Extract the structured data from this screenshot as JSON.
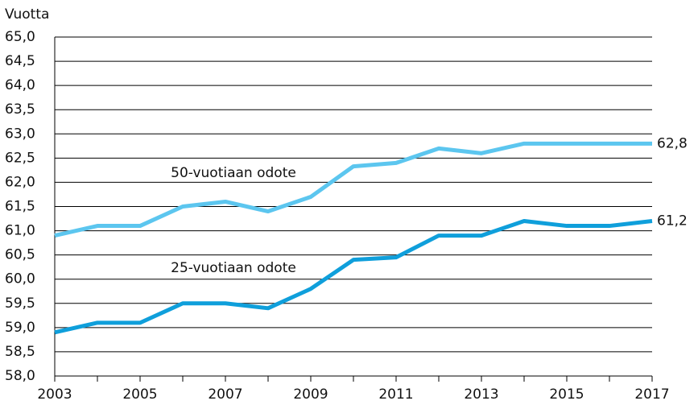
{
  "chart_data": {
    "type": "line",
    "y_label": "Vuotta",
    "x": [
      2003,
      2004,
      2005,
      2006,
      2007,
      2008,
      2009,
      2010,
      2011,
      2012,
      2013,
      2014,
      2015,
      2016,
      2017
    ],
    "series": [
      {
        "name": "50-vuotiaan odote",
        "color": "#5cc6ef",
        "values": [
          60.9,
          61.1,
          61.1,
          61.5,
          61.6,
          61.4,
          61.7,
          62.33,
          62.4,
          62.7,
          62.6,
          62.8,
          62.8,
          62.8,
          62.8
        ],
        "value_labels": [
          null,
          null,
          null,
          null,
          null,
          null,
          null,
          null,
          null,
          null,
          null,
          null,
          null,
          null,
          "62,8"
        ]
      },
      {
        "name": "25-vuotiaan odote",
        "color": "#0f9fdb",
        "values": [
          58.9,
          59.1,
          59.1,
          59.5,
          59.5,
          59.4,
          59.8,
          60.4,
          60.45,
          60.9,
          60.9,
          61.2,
          61.1,
          61.1,
          61.2
        ],
        "value_labels": [
          null,
          null,
          null,
          null,
          null,
          null,
          null,
          null,
          null,
          null,
          null,
          null,
          null,
          null,
          "61,2"
        ]
      }
    ],
    "xlim": [
      2003,
      2017
    ],
    "xticks": [
      2003,
      2005,
      2007,
      2009,
      2011,
      2013,
      2015,
      2017
    ],
    "ylim": [
      58,
      65
    ],
    "yticks": [
      {
        "value": 58,
        "label": "58,0"
      },
      {
        "value": 58.5,
        "label": "58,5"
      },
      {
        "value": 59,
        "label": "59,0"
      },
      {
        "value": 59.5,
        "label": "59,5"
      },
      {
        "value": 60,
        "label": "60,0"
      },
      {
        "value": 60.5,
        "label": "60,5"
      },
      {
        "value": 61,
        "label": "61,0"
      },
      {
        "value": 61.5,
        "label": "61,5"
      },
      {
        "value": 62,
        "label": "62,0"
      },
      {
        "value": 62.5,
        "label": "62,5"
      },
      {
        "value": 63,
        "label": "63,0"
      },
      {
        "value": 63.5,
        "label": "63,5"
      },
      {
        "value": 64,
        "label": "64,0"
      },
      {
        "value": 64.5,
        "label": "64,5"
      },
      {
        "value": 65,
        "label": "65,0"
      }
    ],
    "grid": true
  }
}
